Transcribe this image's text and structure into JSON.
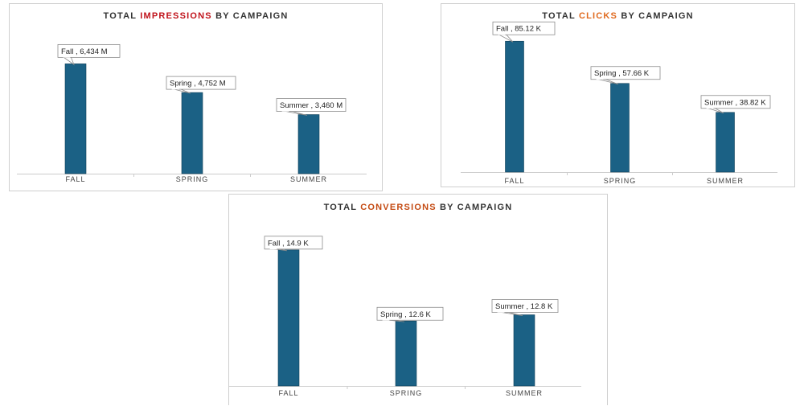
{
  "colors": {
    "bar": "#1b6185",
    "bar_outline": "#0f3f57",
    "axis": "#cccccc",
    "label_border": "#8c8c8c",
    "title_text": "#333333",
    "title_accent": [
      "#c0131b",
      "#e06a1f",
      "#c44a12"
    ]
  },
  "chart_data": [
    {
      "type": "bar",
      "title": {
        "prefix": "TOTAL ",
        "highlight": "IMPRESSIONS",
        "suffix": " BY CAMPAIGN"
      },
      "categories": [
        "FALL",
        "SPRING",
        "SUMMER"
      ],
      "values": [
        6434,
        4752,
        3460
      ],
      "unit": "M",
      "data_labels": [
        "Fall , 6,434 M",
        "Spring , 4,752 M",
        "Summer , 3,460 M"
      ],
      "ylim": [
        0,
        7300
      ],
      "grid": false,
      "legend": "none"
    },
    {
      "type": "bar",
      "title": {
        "prefix": "TOTAL ",
        "highlight": "CLICKS",
        "suffix": " BY CAMPAIGN"
      },
      "categories": [
        "FALL",
        "SPRING",
        "SUMMER"
      ],
      "values": [
        85.12,
        57.66,
        38.82
      ],
      "unit": "K",
      "data_labels": [
        "Fall , 85.12 K",
        "Spring , 57.66 K",
        "Summer , 38.82 K"
      ],
      "ylim": [
        0,
        91
      ],
      "grid": false,
      "legend": "none"
    },
    {
      "type": "bar",
      "title": {
        "prefix": "TOTAL ",
        "highlight": "CONVERSIONS",
        "suffix": " BY CAMPAIGN"
      },
      "categories": [
        "FALL",
        "SPRING",
        "SUMMER"
      ],
      "values": [
        14.9,
        12.6,
        12.8
      ],
      "unit": "K",
      "data_labels": [
        "Fall , 14.9 K",
        "Spring , 12.6 K",
        "Summer , 12.8 K"
      ],
      "ylim": [
        10.5,
        15
      ],
      "grid": false,
      "legend": "none"
    }
  ]
}
